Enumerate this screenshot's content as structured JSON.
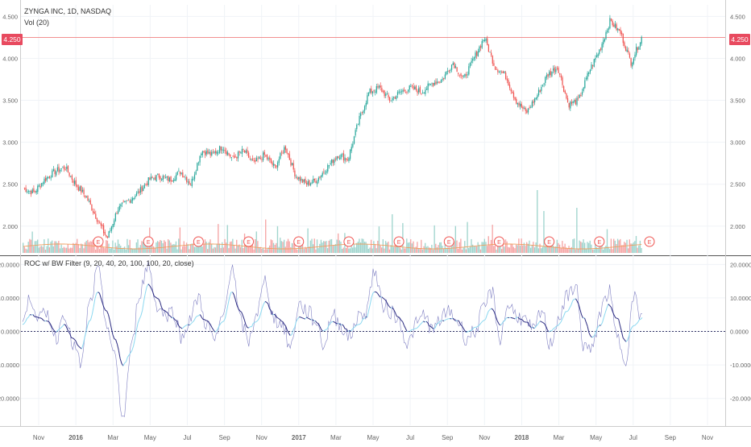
{
  "header": {
    "symbol": "ZYNGA INC, 1D, NASDAQ",
    "volume_label": "Vol (20)"
  },
  "indicator": {
    "title": "ROC w/ BW Filter (9, 20, 40, 20, 100, 100, 20, close)"
  },
  "last_price": "4.250",
  "earnings_marker": "E",
  "colors": {
    "up": "#26a69a",
    "down": "#ef5350",
    "vol_up": "#9fd4cd",
    "vol_down": "#f5a5a5",
    "vol_ma": "#f0a060",
    "roc_raw": "#6a6ab8",
    "roc_filtered": "#2a2a80",
    "roc_filtered_light": "#8ad8f0",
    "price_line": "#f08080",
    "zero_line": "#333366"
  },
  "chart_data": [
    {
      "type": "candlestick",
      "title": "ZYNGA INC, 1D, NASDAQ",
      "ylim": [
        1.7,
        4.6
      ],
      "y_ticks": [
        "2.000",
        "2.500",
        "3.000",
        "3.500",
        "4.000",
        "4.500"
      ],
      "x_ticks": [
        "Nov",
        "2016",
        "Mar",
        "May",
        "Jul",
        "Sep",
        "Nov",
        "2017",
        "Mar",
        "May",
        "Jul",
        "Sep",
        "Nov",
        "2018",
        "Mar",
        "May",
        "Jul",
        "Sep",
        "Nov"
      ],
      "last_value": 4.25,
      "closes": [
        2.45,
        2.4,
        2.55,
        2.65,
        2.7,
        2.5,
        2.35,
        2.1,
        1.85,
        2.2,
        2.3,
        2.4,
        2.55,
        2.6,
        2.55,
        2.65,
        2.5,
        2.9,
        2.85,
        2.95,
        2.8,
        2.9,
        2.75,
        2.85,
        2.7,
        2.95,
        2.6,
        2.5,
        2.55,
        2.7,
        2.85,
        2.8,
        3.25,
        3.6,
        3.65,
        3.5,
        3.6,
        3.65,
        3.6,
        3.7,
        3.75,
        3.95,
        3.75,
        4.0,
        4.25,
        3.9,
        3.8,
        3.5,
        3.35,
        3.55,
        3.8,
        3.9,
        3.45,
        3.5,
        3.85,
        4.1,
        4.45,
        4.3,
        3.95,
        4.25
      ],
      "volume_ma_label": "Vol (20)",
      "earnings": [
        "E",
        "E",
        "E",
        "E",
        "E",
        "E",
        "E",
        "E",
        "E",
        "E",
        "E",
        "E"
      ]
    },
    {
      "type": "line",
      "title": "ROC w/ BW Filter (9, 20, 40, 20, 100, 100, 20, close)",
      "ylim": [
        -28,
        22
      ],
      "y_ticks": [
        "-20.0000",
        "-10.0000",
        "0.0000",
        "10.0000",
        "20.0000"
      ],
      "zero_line": 0,
      "series": [
        {
          "values": [
            3,
            10,
            4,
            5,
            -2,
            6,
            -4,
            -10,
            8,
            18,
            3,
            -8,
            -26,
            -5,
            12,
            20,
            8,
            5,
            6,
            -2,
            4,
            10,
            2,
            -3,
            5,
            20,
            3,
            -3,
            6,
            15,
            4,
            2,
            -5,
            8,
            6,
            3,
            -4,
            5,
            2,
            -2,
            4,
            6,
            18,
            8,
            6,
            3,
            -4,
            2,
            5,
            0,
            4,
            6,
            3,
            -2,
            0,
            6,
            12,
            -2,
            8,
            5,
            3,
            0,
            6,
            -4,
            4,
            10,
            14,
            -4,
            -6,
            6,
            12,
            -2,
            -8,
            10,
            4
          ]
        },
        {
          "values": [
            2,
            5,
            4,
            3,
            0,
            2,
            -2,
            -5,
            3,
            12,
            6,
            -2,
            -10,
            -6,
            4,
            14,
            10,
            6,
            4,
            1,
            2,
            5,
            3,
            0,
            3,
            12,
            6,
            1,
            3,
            9,
            5,
            3,
            -1,
            4,
            4,
            3,
            0,
            3,
            2,
            0,
            2,
            4,
            12,
            10,
            7,
            4,
            0,
            1,
            3,
            1,
            3,
            4,
            3,
            0,
            1,
            3,
            7,
            2,
            4,
            4,
            3,
            1,
            3,
            0,
            2,
            6,
            10,
            4,
            -2,
            2,
            8,
            4,
            -3,
            2,
            4
          ]
        }
      ]
    }
  ]
}
